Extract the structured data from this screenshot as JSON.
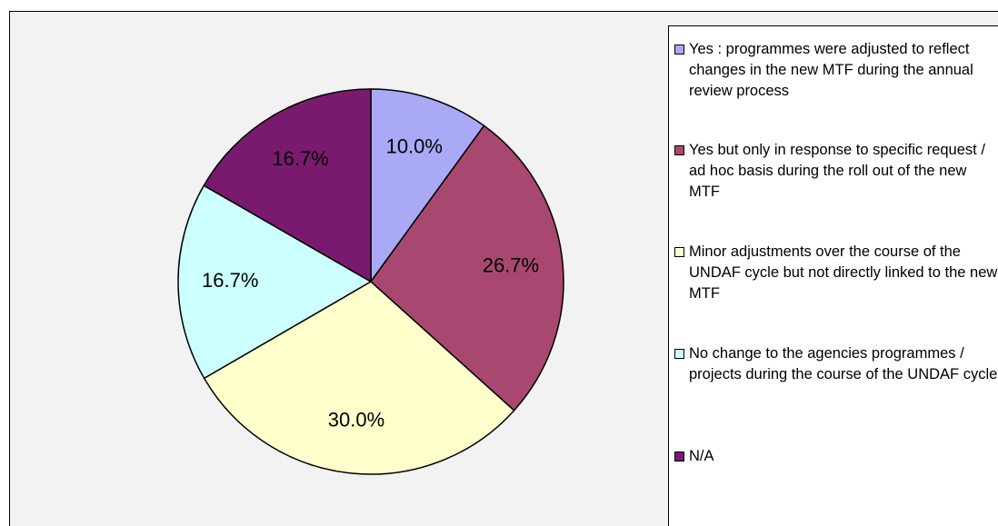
{
  "chart_data": {
    "type": "pie",
    "categories": [
      "Yes : programmes were adjusted to reflect changes in the new MTF during the annual review process",
      "Yes but only in response to specific request / ad hoc basis during the roll out of the new MTF",
      "Minor adjustments over the course of the UNDAF cycle but not directly linked to the new MTF",
      "No change to the agencies programmes / projects during the course of the UNDAF cycle",
      "N/A"
    ],
    "values": [
      10,
      26.7,
      30,
      16.7,
      16.7
    ],
    "value_labels": [
      "10.0%",
      "26.7%",
      "30.0%",
      "16.7%",
      "16.7%"
    ],
    "colors": [
      "#a9a9f5",
      "#a84870",
      "#ffffcc",
      "#ccffff",
      "#7a1a6e"
    ],
    "legend": "right"
  }
}
